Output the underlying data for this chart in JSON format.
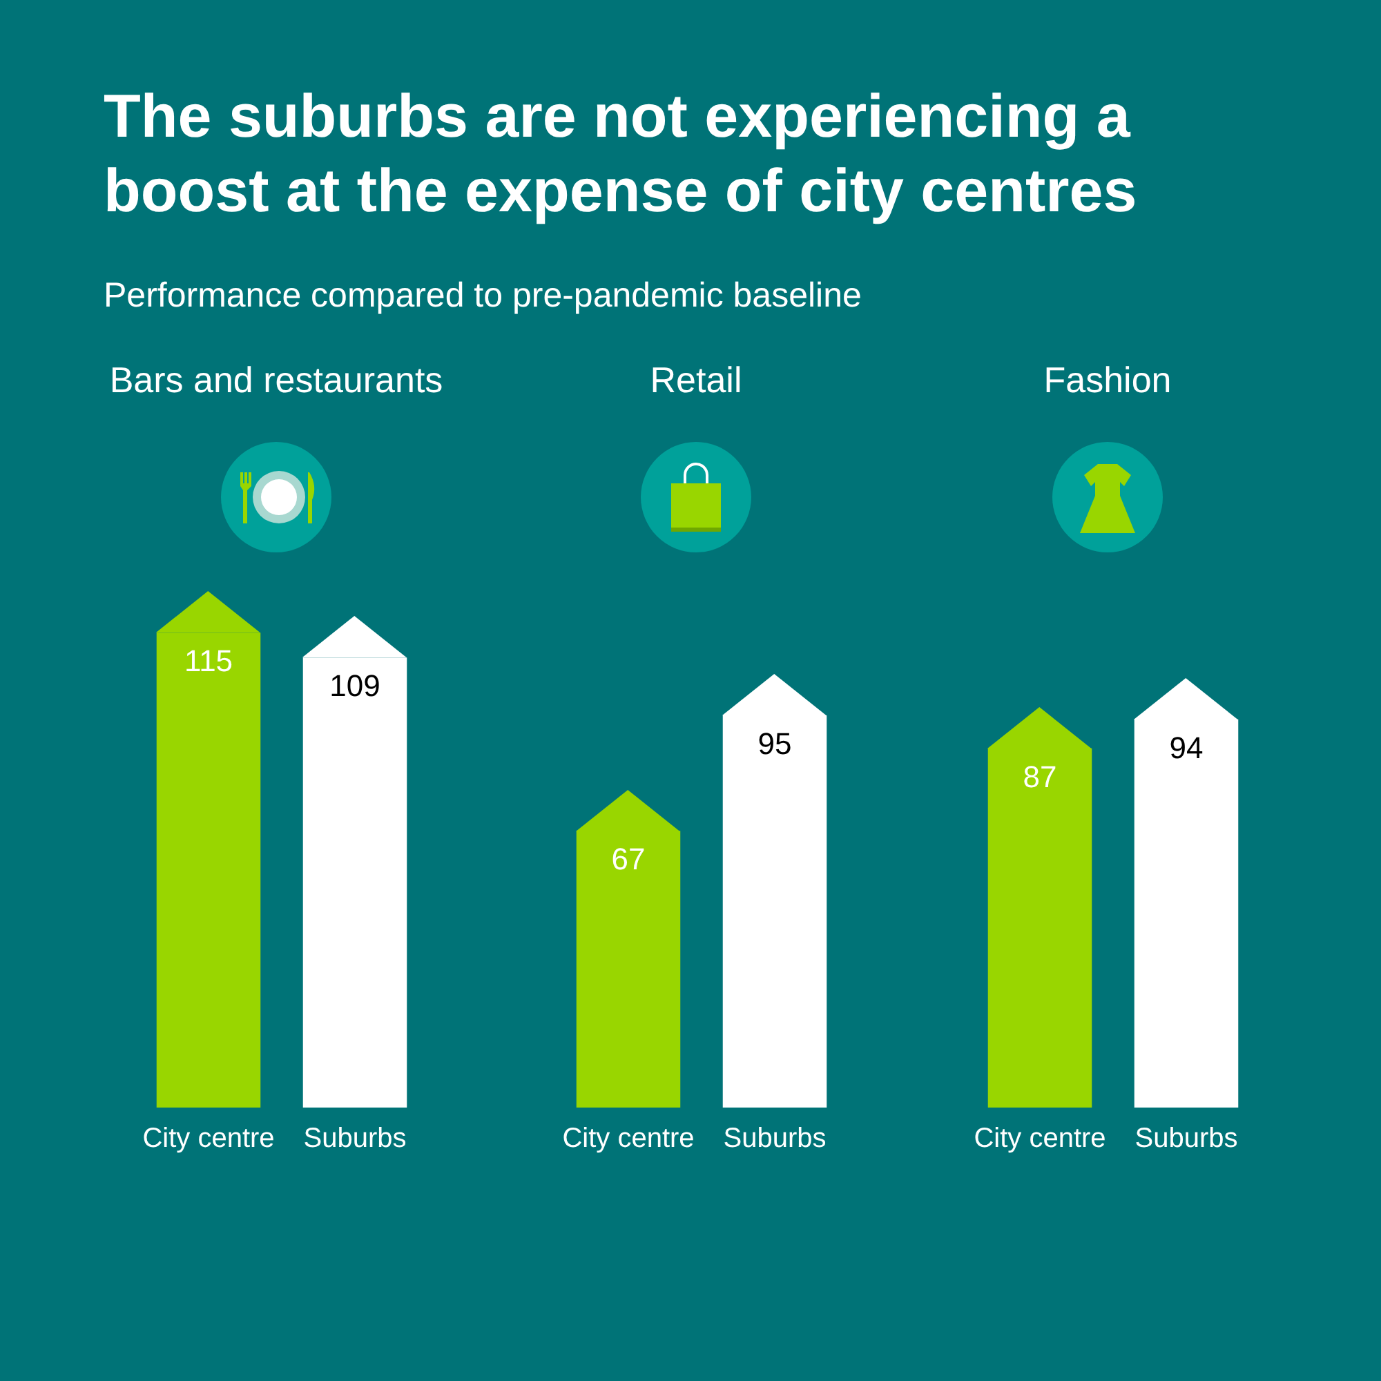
{
  "chart_data": [
    {
      "type": "other",
      "title": "The suburbs are not experiencing a boost at the expense of city centres",
      "subtitle": "Performance compared to pre-pandemic baseline"
    },
    {
      "type": "bar",
      "title": "Bars and restaurants",
      "categories": [
        "City centre",
        "Suburbs"
      ],
      "values": [
        115,
        109
      ],
      "colors": [
        "#99d600",
        "#ffffff"
      ],
      "data_labels": true
    },
    {
      "type": "bar",
      "title": "Retail",
      "categories": [
        "City centre",
        "Suburbs"
      ],
      "values": [
        67,
        95
      ],
      "colors": [
        "#99d600",
        "#ffffff"
      ],
      "data_labels": true
    },
    {
      "type": "bar",
      "title": "Fashion",
      "categories": [
        "City centre",
        "Suburbs"
      ],
      "values": [
        87,
        94
      ],
      "colors": [
        "#99d600",
        "#ffffff"
      ],
      "data_labels": true
    }
  ]
}
